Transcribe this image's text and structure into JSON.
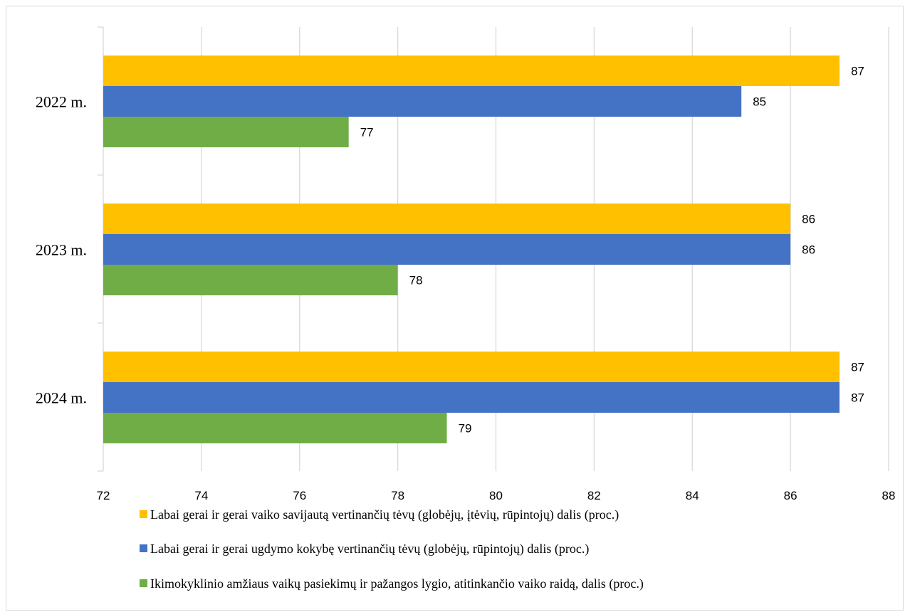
{
  "chart_data": {
    "type": "bar",
    "orientation": "horizontal",
    "categories": [
      "2022 m.",
      "2023 m.",
      "2024 m."
    ],
    "series": [
      {
        "name": "Labai gerai ir gerai vaiko savijautą vertinančių tėvų (globėjų, įtėvių, rūpintojų) dalis   (proc.)",
        "color": "#FFC000",
        "values": [
          87,
          86,
          87
        ]
      },
      {
        "name": "Labai gerai ir gerai ugdymo kokybę vertinančių tėvų (globėjų, rūpintojų) dalis (proc.)",
        "color": "#4472C4",
        "values": [
          85,
          86,
          87
        ]
      },
      {
        "name": "Ikimokyklinio amžiaus vaikų pasiekimų ir pažangos lygio, atitinkančio vaiko raidą, dalis (proc.)",
        "color": "#70AD47",
        "values": [
          77,
          78,
          79
        ]
      }
    ],
    "xlim": [
      72,
      88
    ],
    "xticks": [
      "72",
      "74",
      "76",
      "78",
      "80",
      "82",
      "84",
      "86",
      "88"
    ],
    "title": "",
    "xlabel": "",
    "ylabel": "",
    "grid": "vertical",
    "legend_position": "bottom"
  }
}
